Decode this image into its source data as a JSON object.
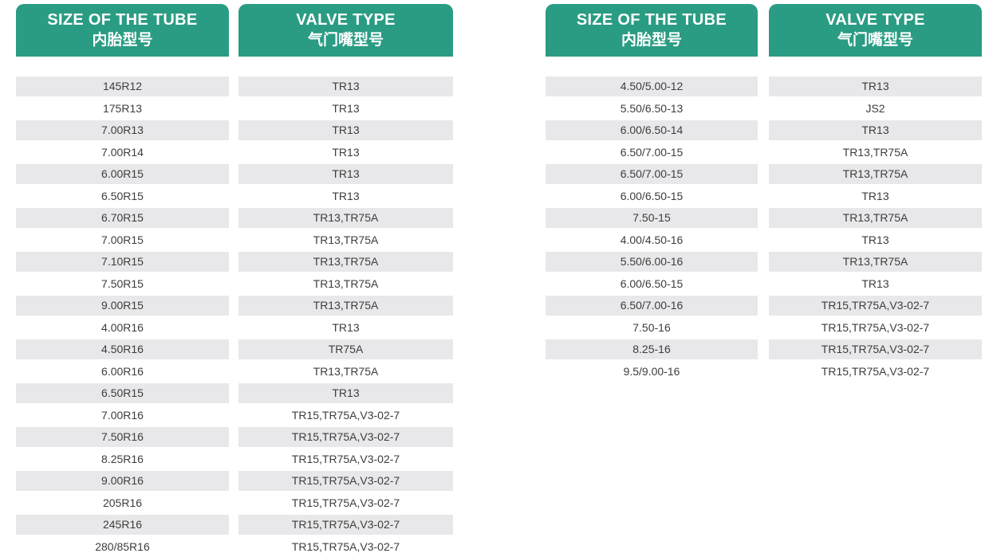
{
  "colors": {
    "header_green": "#2a9c83",
    "row_stripe": "#e8e8ea",
    "row_text": "#3d3d3d",
    "header_text": "#ffffff"
  },
  "headers": {
    "size_en": "SIZE OF THE TUBE",
    "size_zh": "内胎型号",
    "valve_en": "VALVE TYPE",
    "valve_zh": "气门嘴型号"
  },
  "tables": [
    {
      "rows": [
        [
          "145R12",
          "TR13"
        ],
        [
          "175R13",
          "TR13"
        ],
        [
          "7.00R13",
          "TR13"
        ],
        [
          "7.00R14",
          "TR13"
        ],
        [
          "6.00R15",
          "TR13"
        ],
        [
          "6.50R15",
          "TR13"
        ],
        [
          "6.70R15",
          "TR13,TR75A"
        ],
        [
          "7.00R15",
          "TR13,TR75A"
        ],
        [
          "7.10R15",
          "TR13,TR75A"
        ],
        [
          "7.50R15",
          "TR13,TR75A"
        ],
        [
          "9.00R15",
          "TR13,TR75A"
        ],
        [
          "4.00R16",
          "TR13"
        ],
        [
          "4.50R16",
          "TR75A"
        ],
        [
          "6.00R16",
          "TR13,TR75A"
        ],
        [
          "6.50R15",
          "TR13"
        ],
        [
          "7.00R16",
          "TR15,TR75A,V3-02-7"
        ],
        [
          "7.50R16",
          "TR15,TR75A,V3-02-7"
        ],
        [
          "8.25R16",
          "TR15,TR75A,V3-02-7"
        ],
        [
          "9.00R16",
          "TR15,TR75A,V3-02-7"
        ],
        [
          "205R16",
          "TR15,TR75A,V3-02-7"
        ],
        [
          "245R16",
          "TR15,TR75A,V3-02-7"
        ],
        [
          "280/85R16",
          "TR15,TR75A,V3-02-7"
        ]
      ]
    },
    {
      "rows": [
        [
          "4.50/5.00-12",
          "TR13"
        ],
        [
          "5.50/6.50-13",
          "JS2"
        ],
        [
          "6.00/6.50-14",
          "TR13"
        ],
        [
          "6.50/7.00-15",
          "TR13,TR75A"
        ],
        [
          "6.50/7.00-15",
          "TR13,TR75A"
        ],
        [
          "6.00/6.50-15",
          "TR13"
        ],
        [
          "7.50-15",
          "TR13,TR75A"
        ],
        [
          "4.00/4.50-16",
          "TR13"
        ],
        [
          "5.50/6.00-16",
          "TR13,TR75A"
        ],
        [
          "6.00/6.50-15",
          "TR13"
        ],
        [
          "6.50/7.00-16",
          "TR15,TR75A,V3-02-7"
        ],
        [
          "7.50-16",
          "TR15,TR75A,V3-02-7"
        ],
        [
          "8.25-16",
          "TR15,TR75A,V3-02-7"
        ],
        [
          "9.5/9.00-16",
          "TR15,TR75A,V3-02-7"
        ]
      ]
    }
  ]
}
